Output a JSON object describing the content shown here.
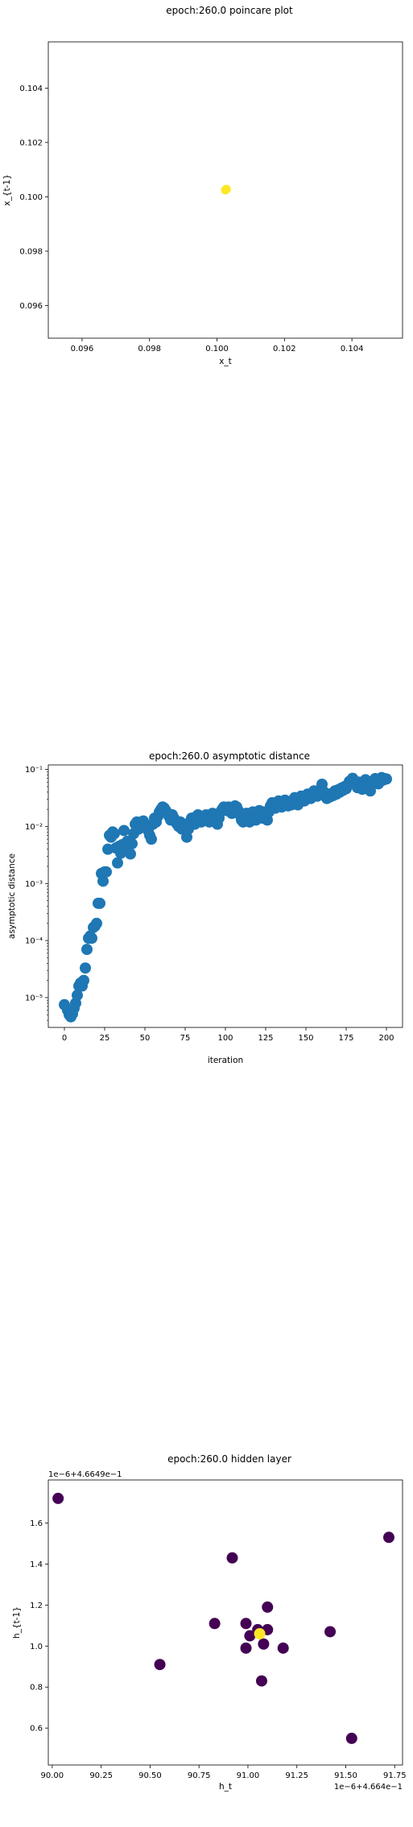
{
  "chart_data": [
    {
      "type": "scatter",
      "title": "epoch:260.0 poincare plot",
      "xlabel": "x_t",
      "ylabel": "x_{t-1}",
      "xlim": [
        0.095,
        0.1055
      ],
      "ylim": [
        0.0948,
        0.1057
      ],
      "xticks": [
        {
          "value": 0.096,
          "label": "0.096"
        },
        {
          "value": 0.098,
          "label": "0.098"
        },
        {
          "value": 0.1,
          "label": "0.100"
        },
        {
          "value": 0.102,
          "label": "0.102"
        },
        {
          "value": 0.104,
          "label": "0.104"
        }
      ],
      "yticks": [
        {
          "value": 0.096,
          "label": "0.096"
        },
        {
          "value": 0.098,
          "label": "0.098"
        },
        {
          "value": 0.1,
          "label": "0.100"
        },
        {
          "value": 0.102,
          "label": "0.102"
        },
        {
          "value": 0.104,
          "label": "0.104"
        }
      ],
      "marker_color": "#fde725",
      "points": [
        {
          "x": 0.10025,
          "y": 0.10025
        },
        {
          "x": 0.10028,
          "y": 0.10028
        }
      ]
    },
    {
      "type": "scatter",
      "title": "epoch:260.0 asymptotic distance",
      "xlabel": "iteration",
      "ylabel": "asymptotic distance",
      "yscale": "log",
      "xlim": [
        -10,
        210
      ],
      "ylim": [
        3e-06,
        0.12
      ],
      "xticks": [
        {
          "value": 0,
          "label": "0"
        },
        {
          "value": 25,
          "label": "25"
        },
        {
          "value": 50,
          "label": "50"
        },
        {
          "value": 75,
          "label": "75"
        },
        {
          "value": 100,
          "label": "100"
        },
        {
          "value": 125,
          "label": "125"
        },
        {
          "value": 150,
          "label": "150"
        },
        {
          "value": 175,
          "label": "175"
        },
        {
          "value": 200,
          "label": "200"
        }
      ],
      "yticks": [
        {
          "value": 1e-05,
          "label": "10⁻⁵"
        },
        {
          "value": 0.0001,
          "label": "10⁻⁴"
        },
        {
          "value": 0.001,
          "label": "10⁻³"
        },
        {
          "value": 0.01,
          "label": "10⁻²"
        },
        {
          "value": 0.1,
          "label": "10⁻¹"
        }
      ],
      "marker_color": "#1f77b4",
      "points": [
        {
          "x": 0,
          "y": 7.5e-06
        },
        {
          "x": 2,
          "y": 6e-06
        },
        {
          "x": 3,
          "y": 5e-06
        },
        {
          "x": 4,
          "y": 4.6e-06
        },
        {
          "x": 5,
          "y": 5.2e-06
        },
        {
          "x": 6,
          "y": 6.5e-06
        },
        {
          "x": 7,
          "y": 8e-06
        },
        {
          "x": 8,
          "y": 1.1e-05
        },
        {
          "x": 9,
          "y": 1.6e-05
        },
        {
          "x": 10,
          "y": 1.8e-05
        },
        {
          "x": 11,
          "y": 1.6e-05
        },
        {
          "x": 12,
          "y": 2e-05
        },
        {
          "x": 13,
          "y": 3.3e-05
        },
        {
          "x": 14,
          "y": 7e-05
        },
        {
          "x": 15,
          "y": 0.00011
        },
        {
          "x": 16,
          "y": 0.00012
        },
        {
          "x": 17,
          "y": 0.00011
        },
        {
          "x": 18,
          "y": 0.00017
        },
        {
          "x": 19,
          "y": 0.00018
        },
        {
          "x": 20,
          "y": 0.0002
        },
        {
          "x": 21,
          "y": 0.00045
        },
        {
          "x": 22,
          "y": 0.00045
        },
        {
          "x": 23,
          "y": 0.0015
        },
        {
          "x": 24,
          "y": 0.0011
        },
        {
          "x": 25,
          "y": 0.0016
        },
        {
          "x": 26,
          "y": 0.0016
        },
        {
          "x": 27,
          "y": 0.004
        },
        {
          "x": 28,
          "y": 0.007
        },
        {
          "x": 29,
          "y": 0.0065
        },
        {
          "x": 30,
          "y": 0.008
        },
        {
          "x": 31,
          "y": 0.0075
        },
        {
          "x": 32,
          "y": 0.0042
        },
        {
          "x": 33,
          "y": 0.0023
        },
        {
          "x": 34,
          "y": 0.0045
        },
        {
          "x": 35,
          "y": 0.0034
        },
        {
          "x": 36,
          "y": 0.0048
        },
        {
          "x": 37,
          "y": 0.0085
        },
        {
          "x": 38,
          "y": 0.0038
        },
        {
          "x": 39,
          "y": 0.0055
        },
        {
          "x": 40,
          "y": 0.0052
        },
        {
          "x": 41,
          "y": 0.0033
        },
        {
          "x": 42,
          "y": 0.005
        },
        {
          "x": 43,
          "y": 0.0075
        },
        {
          "x": 44,
          "y": 0.011
        },
        {
          "x": 45,
          "y": 0.012
        },
        {
          "x": 46,
          "y": 0.009
        },
        {
          "x": 47,
          "y": 0.011
        },
        {
          "x": 48,
          "y": 0.012
        },
        {
          "x": 49,
          "y": 0.0125
        },
        {
          "x": 50,
          "y": 0.011
        },
        {
          "x": 51,
          "y": 0.01
        },
        {
          "x": 52,
          "y": 0.0085
        },
        {
          "x": 53,
          "y": 0.007
        },
        {
          "x": 54,
          "y": 0.006
        },
        {
          "x": 55,
          "y": 0.011
        },
        {
          "x": 56,
          "y": 0.014
        },
        {
          "x": 57,
          "y": 0.012
        },
        {
          "x": 58,
          "y": 0.015
        },
        {
          "x": 59,
          "y": 0.018
        },
        {
          "x": 60,
          "y": 0.02
        },
        {
          "x": 61,
          "y": 0.022
        },
        {
          "x": 62,
          "y": 0.021
        },
        {
          "x": 63,
          "y": 0.019
        },
        {
          "x": 64,
          "y": 0.017
        },
        {
          "x": 65,
          "y": 0.015
        },
        {
          "x": 66,
          "y": 0.013
        },
        {
          "x": 67,
          "y": 0.016
        },
        {
          "x": 68,
          "y": 0.014
        },
        {
          "x": 69,
          "y": 0.012
        },
        {
          "x": 70,
          "y": 0.011
        },
        {
          "x": 71,
          "y": 0.01
        },
        {
          "x": 72,
          "y": 0.012
        },
        {
          "x": 73,
          "y": 0.009
        },
        {
          "x": 74,
          "y": 0.011
        },
        {
          "x": 75,
          "y": 0.01
        },
        {
          "x": 76,
          "y": 0.0065
        },
        {
          "x": 77,
          "y": 0.009
        },
        {
          "x": 78,
          "y": 0.012
        },
        {
          "x": 79,
          "y": 0.014
        },
        {
          "x": 80,
          "y": 0.013
        },
        {
          "x": 81,
          "y": 0.011
        },
        {
          "x": 82,
          "y": 0.015
        },
        {
          "x": 83,
          "y": 0.016
        },
        {
          "x": 84,
          "y": 0.014
        },
        {
          "x": 85,
          "y": 0.012
        },
        {
          "x": 86,
          "y": 0.015
        },
        {
          "x": 87,
          "y": 0.013
        },
        {
          "x": 88,
          "y": 0.016
        },
        {
          "x": 89,
          "y": 0.014
        },
        {
          "x": 90,
          "y": 0.012
        },
        {
          "x": 91,
          "y": 0.015
        },
        {
          "x": 92,
          "y": 0.017
        },
        {
          "x": 93,
          "y": 0.016
        },
        {
          "x": 94,
          "y": 0.013
        },
        {
          "x": 95,
          "y": 0.011
        },
        {
          "x": 96,
          "y": 0.014
        },
        {
          "x": 97,
          "y": 0.018
        },
        {
          "x": 98,
          "y": 0.02
        },
        {
          "x": 99,
          "y": 0.022
        },
        {
          "x": 100,
          "y": 0.021
        },
        {
          "x": 101,
          "y": 0.019
        },
        {
          "x": 102,
          "y": 0.022
        },
        {
          "x": 103,
          "y": 0.02
        },
        {
          "x": 104,
          "y": 0.017
        },
        {
          "x": 105,
          "y": 0.021
        },
        {
          "x": 106,
          "y": 0.023
        },
        {
          "x": 107,
          "y": 0.022
        },
        {
          "x": 108,
          "y": 0.019
        },
        {
          "x": 109,
          "y": 0.016
        },
        {
          "x": 110,
          "y": 0.013
        },
        {
          "x": 111,
          "y": 0.012
        },
        {
          "x": 112,
          "y": 0.015
        },
        {
          "x": 113,
          "y": 0.017
        },
        {
          "x": 114,
          "y": 0.014
        },
        {
          "x": 115,
          "y": 0.012
        },
        {
          "x": 116,
          "y": 0.016
        },
        {
          "x": 117,
          "y": 0.018
        },
        {
          "x": 118,
          "y": 0.015
        },
        {
          "x": 119,
          "y": 0.013
        },
        {
          "x": 120,
          "y": 0.016
        },
        {
          "x": 121,
          "y": 0.019
        },
        {
          "x": 122,
          "y": 0.017
        },
        {
          "x": 123,
          "y": 0.014
        },
        {
          "x": 124,
          "y": 0.018
        },
        {
          "x": 125,
          "y": 0.016
        },
        {
          "x": 126,
          "y": 0.013
        },
        {
          "x": 127,
          "y": 0.018
        },
        {
          "x": 128,
          "y": 0.023
        },
        {
          "x": 129,
          "y": 0.026
        },
        {
          "x": 130,
          "y": 0.024
        },
        {
          "x": 131,
          "y": 0.021
        },
        {
          "x": 132,
          "y": 0.025
        },
        {
          "x": 133,
          "y": 0.028
        },
        {
          "x": 134,
          "y": 0.024
        },
        {
          "x": 135,
          "y": 0.022
        },
        {
          "x": 136,
          "y": 0.026
        },
        {
          "x": 137,
          "y": 0.029
        },
        {
          "x": 138,
          "y": 0.025
        },
        {
          "x": 139,
          "y": 0.023
        },
        {
          "x": 140,
          "y": 0.027
        },
        {
          "x": 141,
          "y": 0.024
        },
        {
          "x": 142,
          "y": 0.028
        },
        {
          "x": 143,
          "y": 0.032
        },
        {
          "x": 144,
          "y": 0.027
        },
        {
          "x": 145,
          "y": 0.024
        },
        {
          "x": 146,
          "y": 0.029
        },
        {
          "x": 147,
          "y": 0.034
        },
        {
          "x": 148,
          "y": 0.031
        },
        {
          "x": 149,
          "y": 0.028
        },
        {
          "x": 150,
          "y": 0.033
        },
        {
          "x": 151,
          "y": 0.037
        },
        {
          "x": 152,
          "y": 0.035
        },
        {
          "x": 153,
          "y": 0.031
        },
        {
          "x": 154,
          "y": 0.036
        },
        {
          "x": 155,
          "y": 0.042
        },
        {
          "x": 156,
          "y": 0.039
        },
        {
          "x": 157,
          "y": 0.034
        },
        {
          "x": 158,
          "y": 0.038
        },
        {
          "x": 159,
          "y": 0.045
        },
        {
          "x": 160,
          "y": 0.055
        },
        {
          "x": 161,
          "y": 0.041
        },
        {
          "x": 162,
          "y": 0.034
        },
        {
          "x": 163,
          "y": 0.031
        },
        {
          "x": 164,
          "y": 0.036
        },
        {
          "x": 165,
          "y": 0.033
        },
        {
          "x": 166,
          "y": 0.038
        },
        {
          "x": 167,
          "y": 0.035
        },
        {
          "x": 168,
          "y": 0.042
        },
        {
          "x": 169,
          "y": 0.037
        },
        {
          "x": 170,
          "y": 0.044
        },
        {
          "x": 171,
          "y": 0.04
        },
        {
          "x": 172,
          "y": 0.047
        },
        {
          "x": 173,
          "y": 0.043
        },
        {
          "x": 174,
          "y": 0.05
        },
        {
          "x": 175,
          "y": 0.046
        },
        {
          "x": 176,
          "y": 0.054
        },
        {
          "x": 177,
          "y": 0.062
        },
        {
          "x": 178,
          "y": 0.058
        },
        {
          "x": 179,
          "y": 0.07
        },
        {
          "x": 180,
          "y": 0.064
        },
        {
          "x": 181,
          "y": 0.055
        },
        {
          "x": 182,
          "y": 0.048
        },
        {
          "x": 183,
          "y": 0.06
        },
        {
          "x": 184,
          "y": 0.052
        },
        {
          "x": 185,
          "y": 0.045
        },
        {
          "x": 186,
          "y": 0.056
        },
        {
          "x": 187,
          "y": 0.066
        },
        {
          "x": 188,
          "y": 0.059
        },
        {
          "x": 189,
          "y": 0.05
        },
        {
          "x": 190,
          "y": 0.042
        },
        {
          "x": 191,
          "y": 0.054
        },
        {
          "x": 192,
          "y": 0.064
        },
        {
          "x": 193,
          "y": 0.069
        },
        {
          "x": 194,
          "y": 0.061
        },
        {
          "x": 195,
          "y": 0.056
        },
        {
          "x": 196,
          "y": 0.067
        },
        {
          "x": 197,
          "y": 0.072
        },
        {
          "x": 198,
          "y": 0.065
        },
        {
          "x": 199,
          "y": 0.069
        },
        {
          "x": 200,
          "y": 0.068
        }
      ]
    },
    {
      "type": "scatter",
      "title": "epoch:260.0 hidden layer",
      "xlabel": "h_t",
      "ylabel": "h_{t-1}",
      "x_offset_text": "1e−6+4.664e−1",
      "y_offset_text": "1e−6+4.6649e−1",
      "xlim": [
        89.98,
        91.79
      ],
      "ylim": [
        0.42,
        1.81
      ],
      "xticks": [
        {
          "value": 90.0,
          "label": "90.00"
        },
        {
          "value": 90.25,
          "label": "90.25"
        },
        {
          "value": 90.5,
          "label": "90.50"
        },
        {
          "value": 90.75,
          "label": "90.75"
        },
        {
          "value": 91.0,
          "label": "91.00"
        },
        {
          "value": 91.25,
          "label": "91.25"
        },
        {
          "value": 91.5,
          "label": "91.50"
        },
        {
          "value": 91.75,
          "label": "91.75"
        }
      ],
      "yticks": [
        {
          "value": 0.6,
          "label": "0.6"
        },
        {
          "value": 0.8,
          "label": "0.8"
        },
        {
          "value": 1.0,
          "label": "1.0"
        },
        {
          "value": 1.2,
          "label": "1.2"
        },
        {
          "value": 1.4,
          "label": "1.4"
        },
        {
          "value": 1.6,
          "label": "1.6"
        }
      ],
      "points": [
        {
          "x": 90.03,
          "y": 1.72,
          "color": "#440154"
        },
        {
          "x": 90.55,
          "y": 0.91,
          "color": "#440154"
        },
        {
          "x": 90.83,
          "y": 1.11,
          "color": "#440154"
        },
        {
          "x": 90.92,
          "y": 1.43,
          "color": "#440154"
        },
        {
          "x": 90.99,
          "y": 1.11,
          "color": "#440154"
        },
        {
          "x": 90.99,
          "y": 0.99,
          "color": "#440154"
        },
        {
          "x": 91.01,
          "y": 1.05,
          "color": "#440154"
        },
        {
          "x": 91.05,
          "y": 1.08,
          "color": "#440154"
        },
        {
          "x": 91.07,
          "y": 0.83,
          "color": "#440154"
        },
        {
          "x": 91.08,
          "y": 1.01,
          "color": "#440154"
        },
        {
          "x": 91.1,
          "y": 1.08,
          "color": "#440154"
        },
        {
          "x": 91.1,
          "y": 1.19,
          "color": "#440154"
        },
        {
          "x": 91.18,
          "y": 0.99,
          "color": "#440154"
        },
        {
          "x": 91.42,
          "y": 1.07,
          "color": "#440154"
        },
        {
          "x": 91.53,
          "y": 0.55,
          "color": "#440154"
        },
        {
          "x": 91.72,
          "y": 1.53,
          "color": "#440154"
        },
        {
          "x": 91.06,
          "y": 1.06,
          "color": "#fde725"
        }
      ]
    }
  ]
}
